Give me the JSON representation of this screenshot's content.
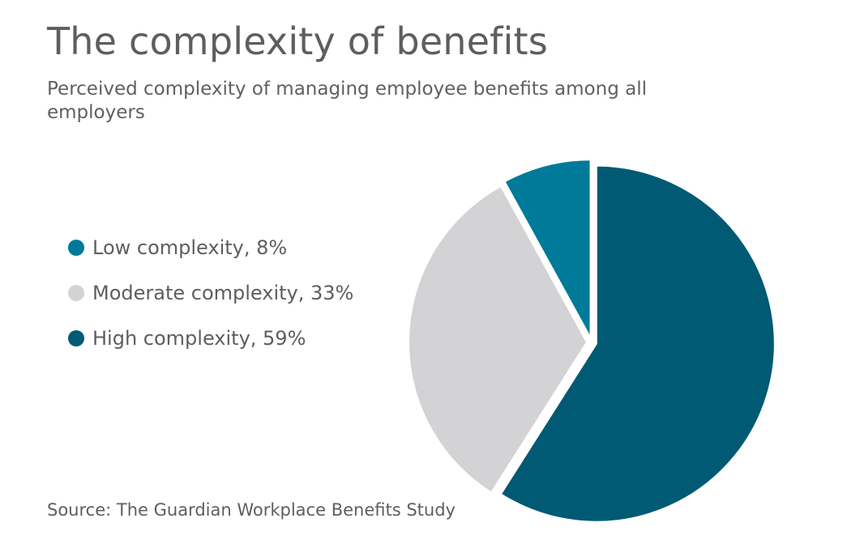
{
  "header": {
    "title": "The complexity of benefits",
    "subtitle": "Perceived complexity of managing employee benefits among all employers"
  },
  "legend": {
    "items": [
      {
        "label": "Low complexity, 8%",
        "color": "#007a99"
      },
      {
        "label": "Moderate complexity, 33%",
        "color": "#d3d3d5"
      },
      {
        "label": "High complexity, 59%",
        "color": "#005a73"
      }
    ]
  },
  "footer": {
    "source": "Source: The Guardian Workplace Benefits Study"
  },
  "chart_data": {
    "type": "pie",
    "title": "The complexity of benefits",
    "subtitle": "Perceived complexity of managing employee benefits among all employers",
    "categories": [
      "High complexity",
      "Moderate complexity",
      "Low complexity"
    ],
    "values": [
      59,
      33,
      8
    ],
    "unit": "%",
    "colors": [
      "#005a73",
      "#d3d3d5",
      "#007a99"
    ],
    "legend_position": "left",
    "exploded": true
  }
}
